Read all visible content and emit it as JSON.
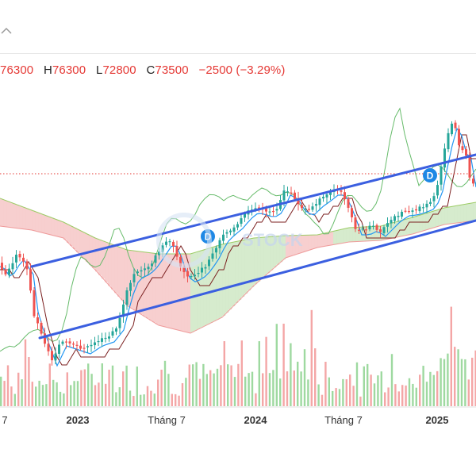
{
  "toolbar": {
    "icon": "chevron-icon"
  },
  "ohlc": {
    "open_prefix": "",
    "open": "76300",
    "high_prefix": "H",
    "high": "76300",
    "low_prefix": "L",
    "low": "72800",
    "close_prefix": "C",
    "close": "73500",
    "change": "−2500 (−3.29%)"
  },
  "watermark": {
    "text": "STOCK"
  },
  "colors": {
    "up": "#26a69a",
    "down": "#ef5350",
    "channel": "#3b5fe0",
    "kumo_bull": "#cfe8c4",
    "kumo_bear": "#f6c7c7",
    "tenkan": "#2196f3",
    "kijun": "#7b1f1f",
    "chikou": "#66bb6a",
    "dividend": "#1e88e5",
    "price_line": "#e53935"
  },
  "chart_data": {
    "type": "candlestick",
    "x_ticks": [
      "7",
      "2023",
      "Tháng 7",
      "2024",
      "Tháng 7",
      "2025"
    ],
    "ohlc_last": {
      "open": 76300,
      "high": 76300,
      "low": 72800,
      "close": 73500,
      "change": -2500,
      "change_pct": -3.29
    },
    "markers": [
      {
        "label": "D",
        "at": "mid-2023"
      },
      {
        "label": "D",
        "at": "late-2024"
      }
    ],
    "series": [
      {
        "name": "price",
        "kind": "candles"
      },
      {
        "name": "volume",
        "kind": "bars"
      },
      {
        "name": "trend channel upper",
        "kind": "line"
      },
      {
        "name": "trend channel lower",
        "kind": "line"
      },
      {
        "name": "ichimoku cloud",
        "kind": "area"
      }
    ]
  }
}
